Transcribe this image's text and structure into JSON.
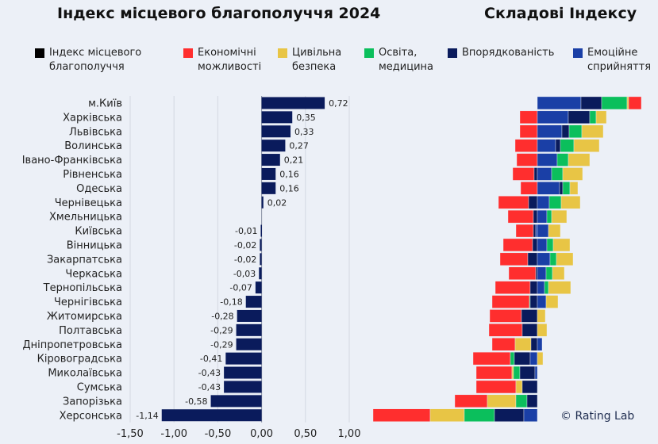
{
  "titles": {
    "left": "Індекс місцевого благополуччя 2024",
    "right": "Складові Індексу"
  },
  "legend": [
    {
      "key": "index",
      "label": "Індекс місцевого\nблагополуччя",
      "color": "#000000"
    },
    {
      "key": "economic",
      "label": "Економічні\nможливості",
      "color": "#ff2e2e"
    },
    {
      "key": "safety",
      "label": "Цивільна\nбезпека",
      "color": "#e8c545"
    },
    {
      "key": "education",
      "label": "Освіта,\nмедицина",
      "color": "#0bbf5c"
    },
    {
      "key": "order",
      "label": "Впорядкованість",
      "color": "#0a1b5c"
    },
    {
      "key": "emotional",
      "label": "Емоційне\nсприйняття",
      "color": "#1a3fa6"
    }
  ],
  "credit": "© Rating Lab",
  "chart_data": [
    {
      "type": "bar",
      "orientation": "horizontal",
      "title": "Індекс місцевого благополуччя 2024",
      "categories": [
        "м.Київ",
        "Харківська",
        "Львівська",
        "Волинська",
        "Івано-Франківська",
        "Рівненська",
        "Одеська",
        "Чернівецька",
        "Хмельницька",
        "Київська",
        "Вінницька",
        "Закарпатська",
        "Черкаська",
        "Тернопільська",
        "Чернігівська",
        "Житомирська",
        "Полтавська",
        "Дніпропетровська",
        "Кіровоградська",
        "Миколаївська",
        "Сумська",
        "Запорізька",
        "Херсонська"
      ],
      "values": [
        0.72,
        0.35,
        0.33,
        0.27,
        0.21,
        0.16,
        0.16,
        0.02,
        0.0,
        -0.01,
        -0.02,
        -0.02,
        -0.03,
        -0.07,
        -0.18,
        -0.28,
        -0.29,
        -0.29,
        -0.41,
        -0.43,
        -0.43,
        -0.58,
        -1.14
      ],
      "data_labels": [
        "0,72",
        "0,35",
        "0,33",
        "0,27",
        "0,21",
        "0,16",
        "0,16",
        "0,02",
        "",
        "-0,01",
        "-0,02",
        "-0,02",
        "-0,03",
        "-0,07",
        "-0,18",
        "-0,28",
        "-0,29",
        "-0,29",
        "-0,41",
        "-0,43",
        "-0,43",
        "-0,58",
        "-1,14"
      ],
      "xlim": [
        -1.5,
        1.0
      ],
      "xticks": [
        -1.5,
        -1.0,
        -0.5,
        0.0,
        0.5,
        1.0
      ],
      "xtick_labels": [
        "-1,50",
        "-1,00",
        "-0,50",
        "0,00",
        "0,50",
        "1,00"
      ],
      "bar_color": "#0a1b5c",
      "grid": true,
      "xlabel": "",
      "ylabel": ""
    },
    {
      "type": "bar",
      "orientation": "horizontal",
      "stacked": "diverging",
      "title": "Складові Індексу",
      "note": "Segment values are estimated relative contributions (unlabeled axis); negative = left of zero line",
      "categories": [
        "м.Київ",
        "Харківська",
        "Львівська",
        "Волинська",
        "Івано-Франківська",
        "Рівненська",
        "Одеська",
        "Чернівецька",
        "Хмельницька",
        "Київська",
        "Вінницька",
        "Закарпатська",
        "Черкаська",
        "Тернопільська",
        "Чернігівська",
        "Житомирська",
        "Полтавська",
        "Дніпропетровська",
        "Кіровоградська",
        "Миколаївська",
        "Сумська",
        "Запорізька",
        "Херсонська"
      ],
      "rows": [
        [
          [
            "emotional",
            0.55
          ],
          [
            "order",
            0.26
          ],
          [
            "education",
            0.32
          ],
          [
            "safety",
            0.02
          ],
          [
            "economic",
            0.16
          ]
        ],
        [
          [
            "economic",
            -0.22
          ],
          [
            "emotional",
            0.39
          ],
          [
            "order",
            0.27
          ],
          [
            "education",
            0.08
          ],
          [
            "safety",
            0.13
          ]
        ],
        [
          [
            "economic",
            -0.22
          ],
          [
            "emotional",
            0.31
          ],
          [
            "order",
            0.09
          ],
          [
            "education",
            0.16
          ],
          [
            "safety",
            0.27
          ]
        ],
        [
          [
            "economic",
            -0.28
          ],
          [
            "emotional",
            0.23
          ],
          [
            "order",
            0.06
          ],
          [
            "education",
            0.17
          ],
          [
            "safety",
            0.32
          ]
        ],
        [
          [
            "economic",
            -0.26
          ],
          [
            "emotional",
            0.25
          ],
          [
            "education",
            0.14
          ],
          [
            "safety",
            0.27
          ]
        ],
        [
          [
            "economic",
            -0.27
          ],
          [
            "order",
            -0.04
          ],
          [
            "emotional",
            0.18
          ],
          [
            "education",
            0.14
          ],
          [
            "safety",
            0.25
          ]
        ],
        [
          [
            "economic",
            -0.21
          ],
          [
            "emotional",
            0.28
          ],
          [
            "order",
            0.04
          ],
          [
            "education",
            0.09
          ],
          [
            "safety",
            0.1
          ]
        ],
        [
          [
            "economic",
            -0.38
          ],
          [
            "order",
            -0.11
          ],
          [
            "emotional",
            0.15
          ],
          [
            "education",
            0.15
          ],
          [
            "safety",
            0.24
          ]
        ],
        [
          [
            "economic",
            -0.32
          ],
          [
            "order",
            -0.05
          ],
          [
            "emotional",
            0.12
          ],
          [
            "education",
            0.06
          ],
          [
            "safety",
            0.19
          ]
        ],
        [
          [
            "economic",
            -0.22
          ],
          [
            "order",
            -0.03
          ],
          [
            "emotional",
            -0.02
          ],
          [
            "emotional",
            0.14
          ],
          [
            "safety",
            0.15
          ]
        ],
        [
          [
            "economic",
            -0.37
          ],
          [
            "order",
            -0.06
          ],
          [
            "emotional",
            0.12
          ],
          [
            "education",
            0.08
          ],
          [
            "safety",
            0.21
          ]
        ],
        [
          [
            "economic",
            -0.35
          ],
          [
            "order",
            -0.12
          ],
          [
            "emotional",
            0.16
          ],
          [
            "education",
            0.08
          ],
          [
            "safety",
            0.21
          ]
        ],
        [
          [
            "economic",
            -0.34
          ],
          [
            "order",
            -0.02
          ],
          [
            "emotional",
            0.11
          ],
          [
            "education",
            0.08
          ],
          [
            "safety",
            0.15
          ]
        ],
        [
          [
            "economic",
            -0.44
          ],
          [
            "order",
            -0.09
          ],
          [
            "emotional",
            0.09
          ],
          [
            "education",
            0.05
          ],
          [
            "safety",
            0.28
          ]
        ],
        [
          [
            "economic",
            -0.47
          ],
          [
            "education",
            -0.01
          ],
          [
            "order",
            -0.09
          ],
          [
            "emotional",
            0.11
          ],
          [
            "safety",
            0.15
          ]
        ],
        [
          [
            "economic",
            -0.4
          ],
          [
            "order",
            -0.2
          ],
          [
            "safety",
            0.1
          ]
        ],
        [
          [
            "economic",
            -0.42
          ],
          [
            "order",
            -0.19
          ],
          [
            "safety",
            0.12
          ]
        ],
        [
          [
            "economic",
            -0.29
          ],
          [
            "safety",
            -0.2
          ],
          [
            "order",
            -0.08
          ],
          [
            "emotional",
            0.06
          ]
        ],
        [
          [
            "economic",
            -0.47
          ],
          [
            "education",
            -0.05
          ],
          [
            "order",
            -0.2
          ],
          [
            "emotional",
            -0.09
          ],
          [
            "safety",
            0.07
          ]
        ],
        [
          [
            "economic",
            -0.45
          ],
          [
            "safety",
            -0.02
          ],
          [
            "education",
            -0.08
          ],
          [
            "order",
            -0.19
          ],
          [
            "emotional",
            -0.03
          ]
        ],
        [
          [
            "economic",
            -0.5
          ],
          [
            "safety",
            -0.08
          ],
          [
            "order",
            -0.19
          ]
        ],
        [
          [
            "economic",
            -0.41
          ],
          [
            "safety",
            -0.36
          ],
          [
            "education",
            -0.14
          ],
          [
            "order",
            -0.13
          ]
        ],
        [
          [
            "economic",
            -0.72
          ],
          [
            "safety",
            -0.43
          ],
          [
            "education",
            -0.38
          ],
          [
            "order",
            -0.37
          ],
          [
            "emotional",
            -0.17
          ]
        ]
      ],
      "colors": {
        "economic": "#ff2e2e",
        "safety": "#e8c545",
        "education": "#0bbf5c",
        "order": "#0a1b5c",
        "emotional": "#1a3fa6"
      },
      "grid": false
    }
  ]
}
